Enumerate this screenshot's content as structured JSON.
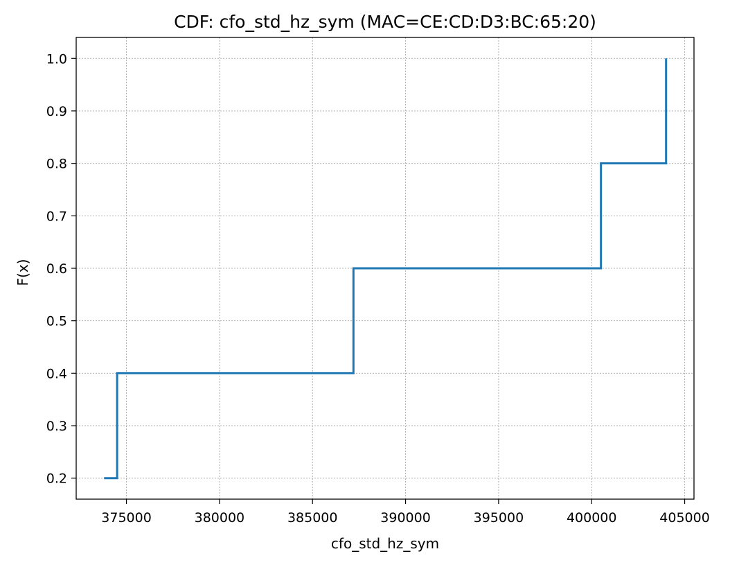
{
  "chart_data": {
    "type": "line",
    "step": "post",
    "title": "CDF: cfo_std_hz_sym (MAC=CE:CD:D3:BC:65:20)",
    "xlabel": "cfo_std_hz_sym",
    "ylabel": "F(x)",
    "xlim": [
      372300,
      405500
    ],
    "ylim": [
      0.16,
      1.04
    ],
    "grid": true,
    "xticks": [
      375000,
      380000,
      385000,
      390000,
      395000,
      400000,
      405000
    ],
    "xtick_labels": [
      "375000",
      "380000",
      "385000",
      "390000",
      "395000",
      "400000",
      "405000"
    ],
    "yticks": [
      0.2,
      0.3,
      0.4,
      0.5,
      0.6,
      0.7,
      0.8,
      0.9,
      1.0
    ],
    "ytick_labels": [
      "0.2",
      "0.3",
      "0.4",
      "0.5",
      "0.6",
      "0.7",
      "0.8",
      "0.9",
      "1.0"
    ],
    "series": [
      {
        "color": "#1f77b4",
        "x": [
          373800,
          374500,
          387200,
          400500,
          404000
        ],
        "y": [
          0.2,
          0.4,
          0.6,
          0.8,
          1.0
        ]
      }
    ]
  }
}
